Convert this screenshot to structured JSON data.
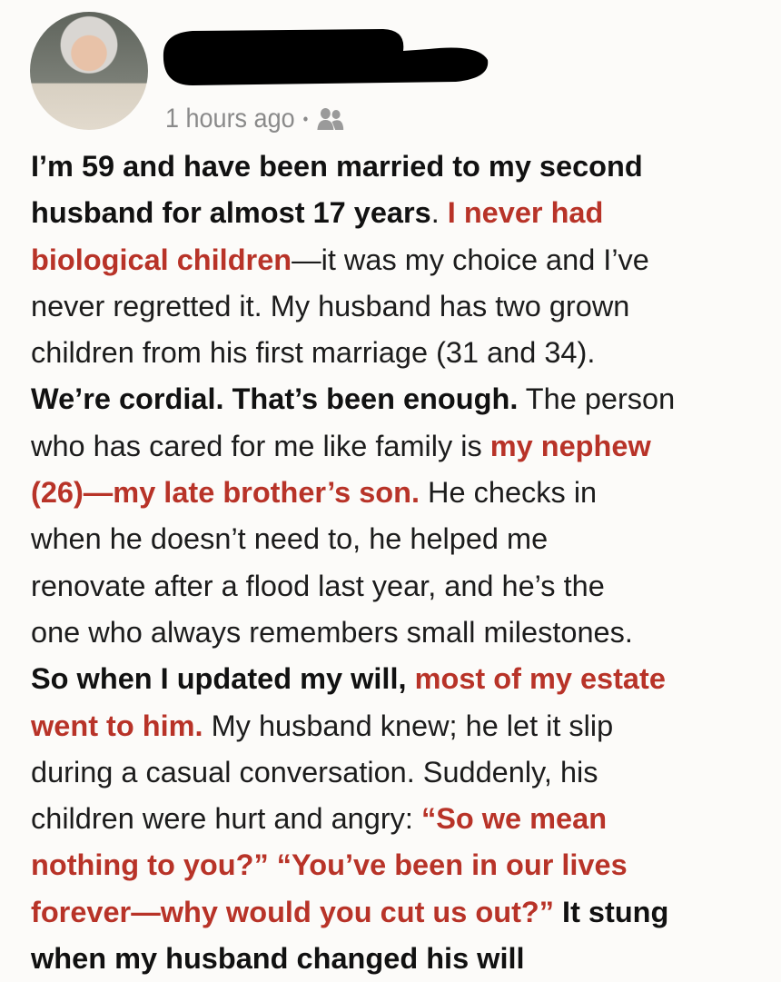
{
  "post": {
    "author_name_redacted": true,
    "timestamp": "1 hours ago",
    "separator": "•",
    "audience_icon": "friends-icon",
    "accent_color": "#b83328",
    "lines": [
      [
        {
          "s": "b",
          "text": "I’m 59 and have been married to my second"
        }
      ],
      [
        {
          "s": "b",
          "text": "husband for almost 17 years"
        },
        {
          "s": "n",
          "text": ". "
        },
        {
          "s": "r",
          "text": "I never had"
        }
      ],
      [
        {
          "s": "r",
          "text": "biological children"
        },
        {
          "s": "n",
          "text": "—it was my choice and I’ve"
        }
      ],
      [
        {
          "s": "n",
          "text": "never regretted it. My husband has two grown"
        }
      ],
      [
        {
          "s": "n",
          "text": "children from his first marriage (31 and 34)."
        }
      ],
      [
        {
          "s": "b",
          "text": "We’re cordial. That’s been enough."
        },
        {
          "s": "n",
          "text": " The person"
        }
      ],
      [
        {
          "s": "n",
          "text": "who has cared for me like family is "
        },
        {
          "s": "r",
          "text": "my nephew"
        }
      ],
      [
        {
          "s": "r",
          "text": "(26)—my late brother’s son."
        },
        {
          "s": "n",
          "text": " He checks in"
        }
      ],
      [
        {
          "s": "n",
          "text": "when he doesn’t need to, he helped me"
        }
      ],
      [
        {
          "s": "n",
          "text": "renovate after a flood last year, and he’s the"
        }
      ],
      [
        {
          "s": "n",
          "text": "one who always remembers small milestones."
        }
      ],
      [
        {
          "s": "b",
          "text": "So when I updated my will, "
        },
        {
          "s": "r",
          "text": "most of my estate"
        }
      ],
      [
        {
          "s": "r",
          "text": "went to him."
        },
        {
          "s": "n",
          "text": " My husband knew; he let it slip"
        }
      ],
      [
        {
          "s": "n",
          "text": "during a casual conversation. Suddenly, his"
        }
      ],
      [
        {
          "s": "n",
          "text": "children were hurt and angry: "
        },
        {
          "s": "r",
          "text": "“So we mean"
        }
      ],
      [
        {
          "s": "r",
          "text": "nothing to you?” “You’ve been in our lives"
        }
      ],
      [
        {
          "s": "r",
          "text": "forever—why would you cut us out?”"
        },
        {
          "s": "b",
          "text": " It stung"
        }
      ],
      [
        {
          "s": "b",
          "text": "when my husband changed his will"
        }
      ]
    ]
  }
}
